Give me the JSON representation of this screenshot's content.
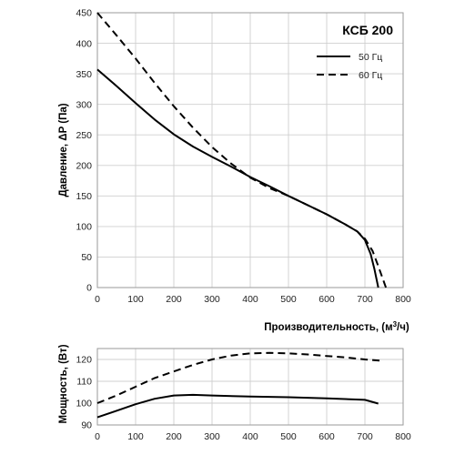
{
  "chart_data": [
    {
      "type": "line",
      "title": "КСБ 200",
      "xlabel": "Производительность, (м³/ч)",
      "ylabel": "Давление, ΔP (Па)",
      "xlim": [
        0,
        800
      ],
      "ylim": [
        0,
        450
      ],
      "x_ticks": [
        0,
        100,
        200,
        300,
        400,
        500,
        600,
        700,
        800
      ],
      "y_ticks": [
        0,
        50,
        100,
        150,
        200,
        250,
        300,
        350,
        400,
        450
      ],
      "grid": true,
      "legend": "top-right",
      "series": [
        {
          "name": "50 Гц",
          "style": "solid",
          "x": [
            0,
            50,
            100,
            150,
            200,
            250,
            300,
            350,
            400,
            450,
            500,
            550,
            600,
            650,
            680,
            700,
            715,
            725,
            735
          ],
          "y": [
            357,
            330,
            302,
            275,
            251,
            231,
            214,
            198,
            181,
            166,
            150,
            135,
            120,
            103,
            92,
            78,
            55,
            30,
            0
          ]
        },
        {
          "name": "60 Гц",
          "style": "dashed",
          "x": [
            0,
            50,
            100,
            150,
            200,
            250,
            300,
            350,
            400,
            450,
            500,
            550,
            600,
            650,
            680,
            700,
            720,
            735,
            755
          ],
          "y": [
            450,
            413,
            375,
            335,
            297,
            262,
            230,
            203,
            180,
            163,
            150,
            135,
            120,
            103,
            92,
            80,
            60,
            35,
            0
          ]
        }
      ]
    },
    {
      "type": "line",
      "ylabel": "Мощность, (Вт)",
      "xlim": [
        0,
        800
      ],
      "ylim": [
        90,
        125
      ],
      "x_ticks": [
        0,
        100,
        200,
        300,
        400,
        500,
        600,
        700,
        800
      ],
      "y_ticks": [
        90,
        100,
        110,
        120
      ],
      "grid": true,
      "series": [
        {
          "name": "50 Гц",
          "style": "solid",
          "x": [
            0,
            50,
            100,
            150,
            200,
            250,
            300,
            400,
            500,
            600,
            700,
            735
          ],
          "y": [
            93.5,
            96.5,
            99.5,
            102,
            103.5,
            103.8,
            103.5,
            103,
            102.7,
            102.2,
            101.5,
            99.8
          ]
        },
        {
          "name": "60 Гц",
          "style": "dashed",
          "x": [
            0,
            50,
            100,
            150,
            200,
            250,
            300,
            350,
            400,
            450,
            500,
            550,
            600,
            650,
            700,
            750
          ],
          "y": [
            100,
            103.5,
            107.5,
            111.5,
            114.5,
            117.5,
            120,
            121.8,
            122.8,
            123,
            122.8,
            122.3,
            121.6,
            120.9,
            120,
            119.3
          ]
        }
      ]
    }
  ]
}
